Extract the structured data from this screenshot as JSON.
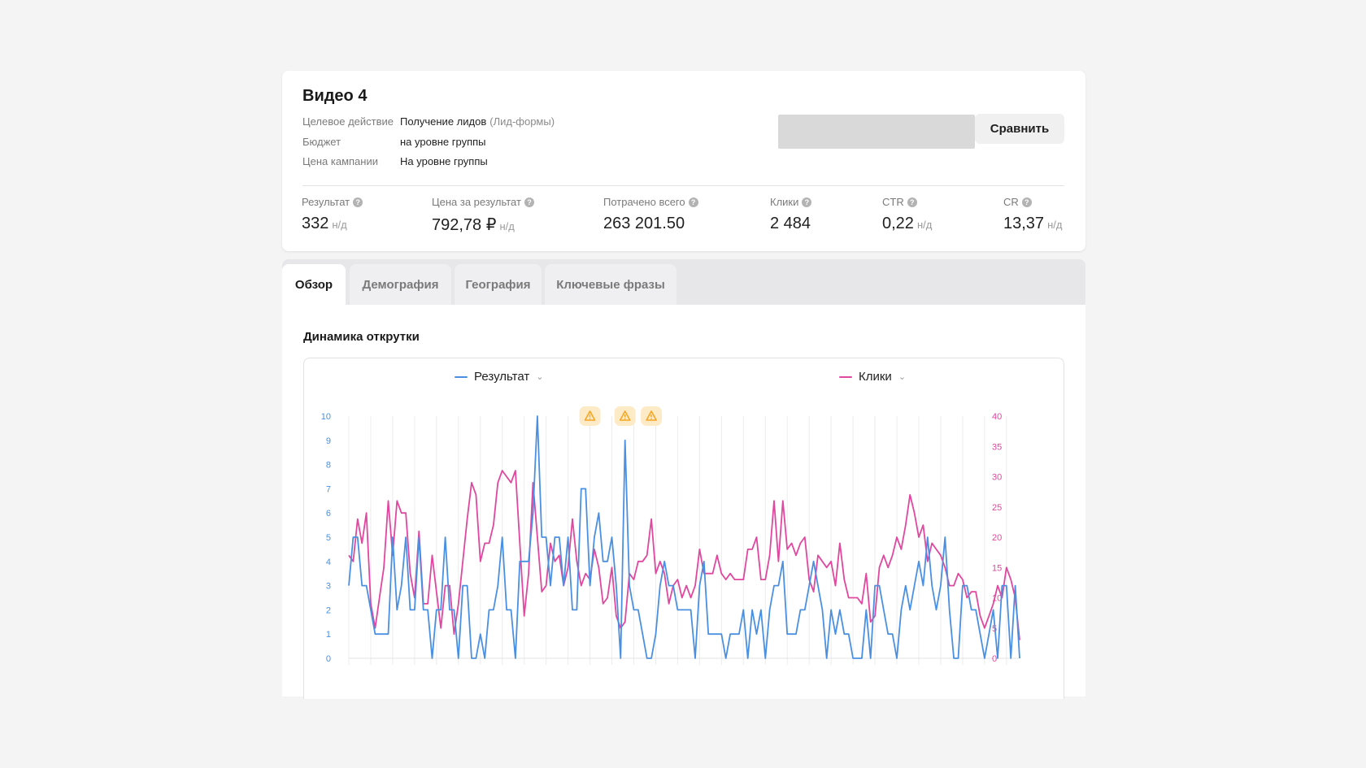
{
  "campaign": {
    "title": "Видео 4",
    "meta": [
      {
        "label": "Целевое действие",
        "value": "Получение лидов",
        "note": "(Лид-формы)"
      },
      {
        "label": "Бюджет",
        "value": "на уровне группы",
        "note": ""
      },
      {
        "label": "Цена кампании",
        "value": "На уровне группы",
        "note": ""
      }
    ],
    "compare_label": "Сравнить"
  },
  "stats": [
    {
      "label": "Результат",
      "value": "332",
      "nd": "н/д"
    },
    {
      "label": "Цена за результат",
      "value": "792,78 ₽",
      "nd": "н/д"
    },
    {
      "label": "Потрачено всего",
      "value": "263 201.50",
      "nd": ""
    },
    {
      "label": "Клики",
      "value": "2 484",
      "nd": ""
    },
    {
      "label": "CTR",
      "value": "0,22",
      "nd": "н/д"
    },
    {
      "label": "CR",
      "value": "13,37",
      "nd": "н/д"
    }
  ],
  "tabs": [
    "Обзор",
    "Демография",
    "География",
    "Ключевые фразы"
  ],
  "active_tab": 0,
  "section_title": "Динамика открутки",
  "colors": {
    "result": "#4a90e2",
    "clicks": "#e0479e",
    "warning": "#f5a623"
  },
  "chart_data": {
    "type": "line",
    "x_count": 154,
    "y_left": {
      "min": 0,
      "max": 10,
      "ticks": [
        0,
        1,
        2,
        3,
        4,
        5,
        6,
        7,
        8,
        9,
        10
      ]
    },
    "y_right": {
      "min": 0,
      "max": 40,
      "ticks": [
        0,
        5,
        10,
        15,
        20,
        25,
        30,
        35,
        40
      ]
    },
    "warnings": [
      55,
      63,
      69
    ],
    "series": [
      {
        "name": "Результат",
        "axis": "left",
        "values": [
          3,
          5,
          5,
          3,
          3,
          2,
          1,
          1,
          1,
          1,
          5,
          2,
          3,
          5,
          2,
          2,
          5,
          2,
          2,
          0,
          2,
          2,
          5,
          2,
          2,
          0,
          3,
          3,
          0,
          0,
          1,
          0,
          2,
          2,
          3,
          5,
          2,
          2,
          0,
          4,
          4,
          4,
          6,
          10,
          5,
          5,
          3,
          5,
          5,
          3,
          5,
          2,
          2,
          7,
          7,
          3,
          5,
          6,
          4,
          4,
          5,
          3,
          0,
          9,
          3,
          2,
          2,
          1,
          0,
          0,
          1,
          3,
          4,
          3,
          3,
          2,
          2,
          2,
          2,
          0,
          3,
          4,
          1,
          1,
          1,
          1,
          0,
          1,
          1,
          1,
          2,
          0,
          2,
          1,
          2,
          0,
          2,
          3,
          3,
          4,
          1,
          1,
          1,
          2,
          2,
          3,
          4,
          3,
          2,
          0,
          2,
          1,
          2,
          1,
          1,
          0,
          0,
          0,
          2,
          0,
          3,
          3,
          2,
          1,
          1,
          0,
          2,
          3,
          2,
          3,
          4,
          3,
          5,
          3,
          2,
          3,
          5,
          2,
          0,
          0,
          3,
          3,
          2,
          2,
          1,
          0,
          1,
          2,
          0,
          3,
          3,
          0,
          3,
          0
        ]
      },
      {
        "name": "Клики",
        "axis": "right",
        "values": [
          17,
          16,
          23,
          19,
          24,
          9,
          5,
          10,
          15,
          26,
          17,
          26,
          24,
          24,
          14,
          10,
          21,
          9,
          9,
          17,
          11,
          5,
          12,
          12,
          4,
          9,
          16,
          23,
          29,
          27,
          16,
          19,
          19,
          22,
          29,
          31,
          30,
          29,
          31,
          19,
          7,
          14,
          29,
          20,
          11,
          12,
          19,
          16,
          17,
          12,
          15,
          23,
          16,
          12,
          14,
          13,
          18,
          15,
          9,
          10,
          15,
          7,
          5,
          6,
          14,
          13,
          16,
          16,
          17,
          23,
          14,
          16,
          14,
          9,
          12,
          13,
          10,
          12,
          10,
          12,
          18,
          14,
          14,
          14,
          17,
          14,
          13,
          14,
          13,
          13,
          13,
          18,
          18,
          20,
          13,
          13,
          17,
          26,
          16,
          26,
          18,
          19,
          17,
          19,
          20,
          13,
          11,
          17,
          16,
          15,
          16,
          12,
          19,
          13,
          10,
          10,
          10,
          9,
          14,
          6,
          7,
          15,
          17,
          15,
          17,
          20,
          18,
          22,
          27,
          24,
          20,
          22,
          16,
          19,
          18,
          17,
          15,
          12,
          12,
          14,
          13,
          10,
          11,
          11,
          7,
          5,
          7,
          9,
          12,
          10,
          15,
          13,
          10,
          3
        ]
      }
    ]
  }
}
